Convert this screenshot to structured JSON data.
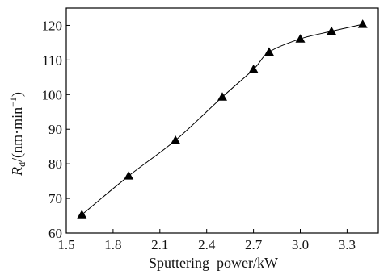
{
  "chart_data": {
    "type": "line",
    "title": "",
    "xlabel": "Sputtering  power/kW",
    "ylabel": {
      "symbol": "R",
      "subscript": "d",
      "unit_text": "/(nm·min",
      "unit_exp": "−1",
      "unit_close": ")"
    },
    "xlim": [
      1.5,
      3.5
    ],
    "ylim": [
      60,
      125
    ],
    "xticks": [
      1.5,
      1.8,
      2.1,
      2.4,
      2.7,
      3.0,
      3.3
    ],
    "xtick_labels": [
      "1.5",
      "1.8",
      "2.1",
      "2.4",
      "2.7",
      "3.0",
      "3.3"
    ],
    "yticks": [
      60,
      70,
      80,
      90,
      100,
      110,
      120
    ],
    "ytick_labels": [
      "60",
      "70",
      "80",
      "90",
      "100",
      "110",
      "120"
    ],
    "grid": false,
    "series": [
      {
        "marker": "triangle",
        "color": "#000000",
        "x": [
          1.6,
          1.9,
          2.2,
          2.5,
          2.7,
          2.8,
          3.0,
          3.2,
          3.4
        ],
        "y": [
          65.3,
          76.5,
          86.8,
          99.3,
          107.3,
          112.3,
          116.1,
          118.3,
          120.3
        ]
      }
    ]
  }
}
